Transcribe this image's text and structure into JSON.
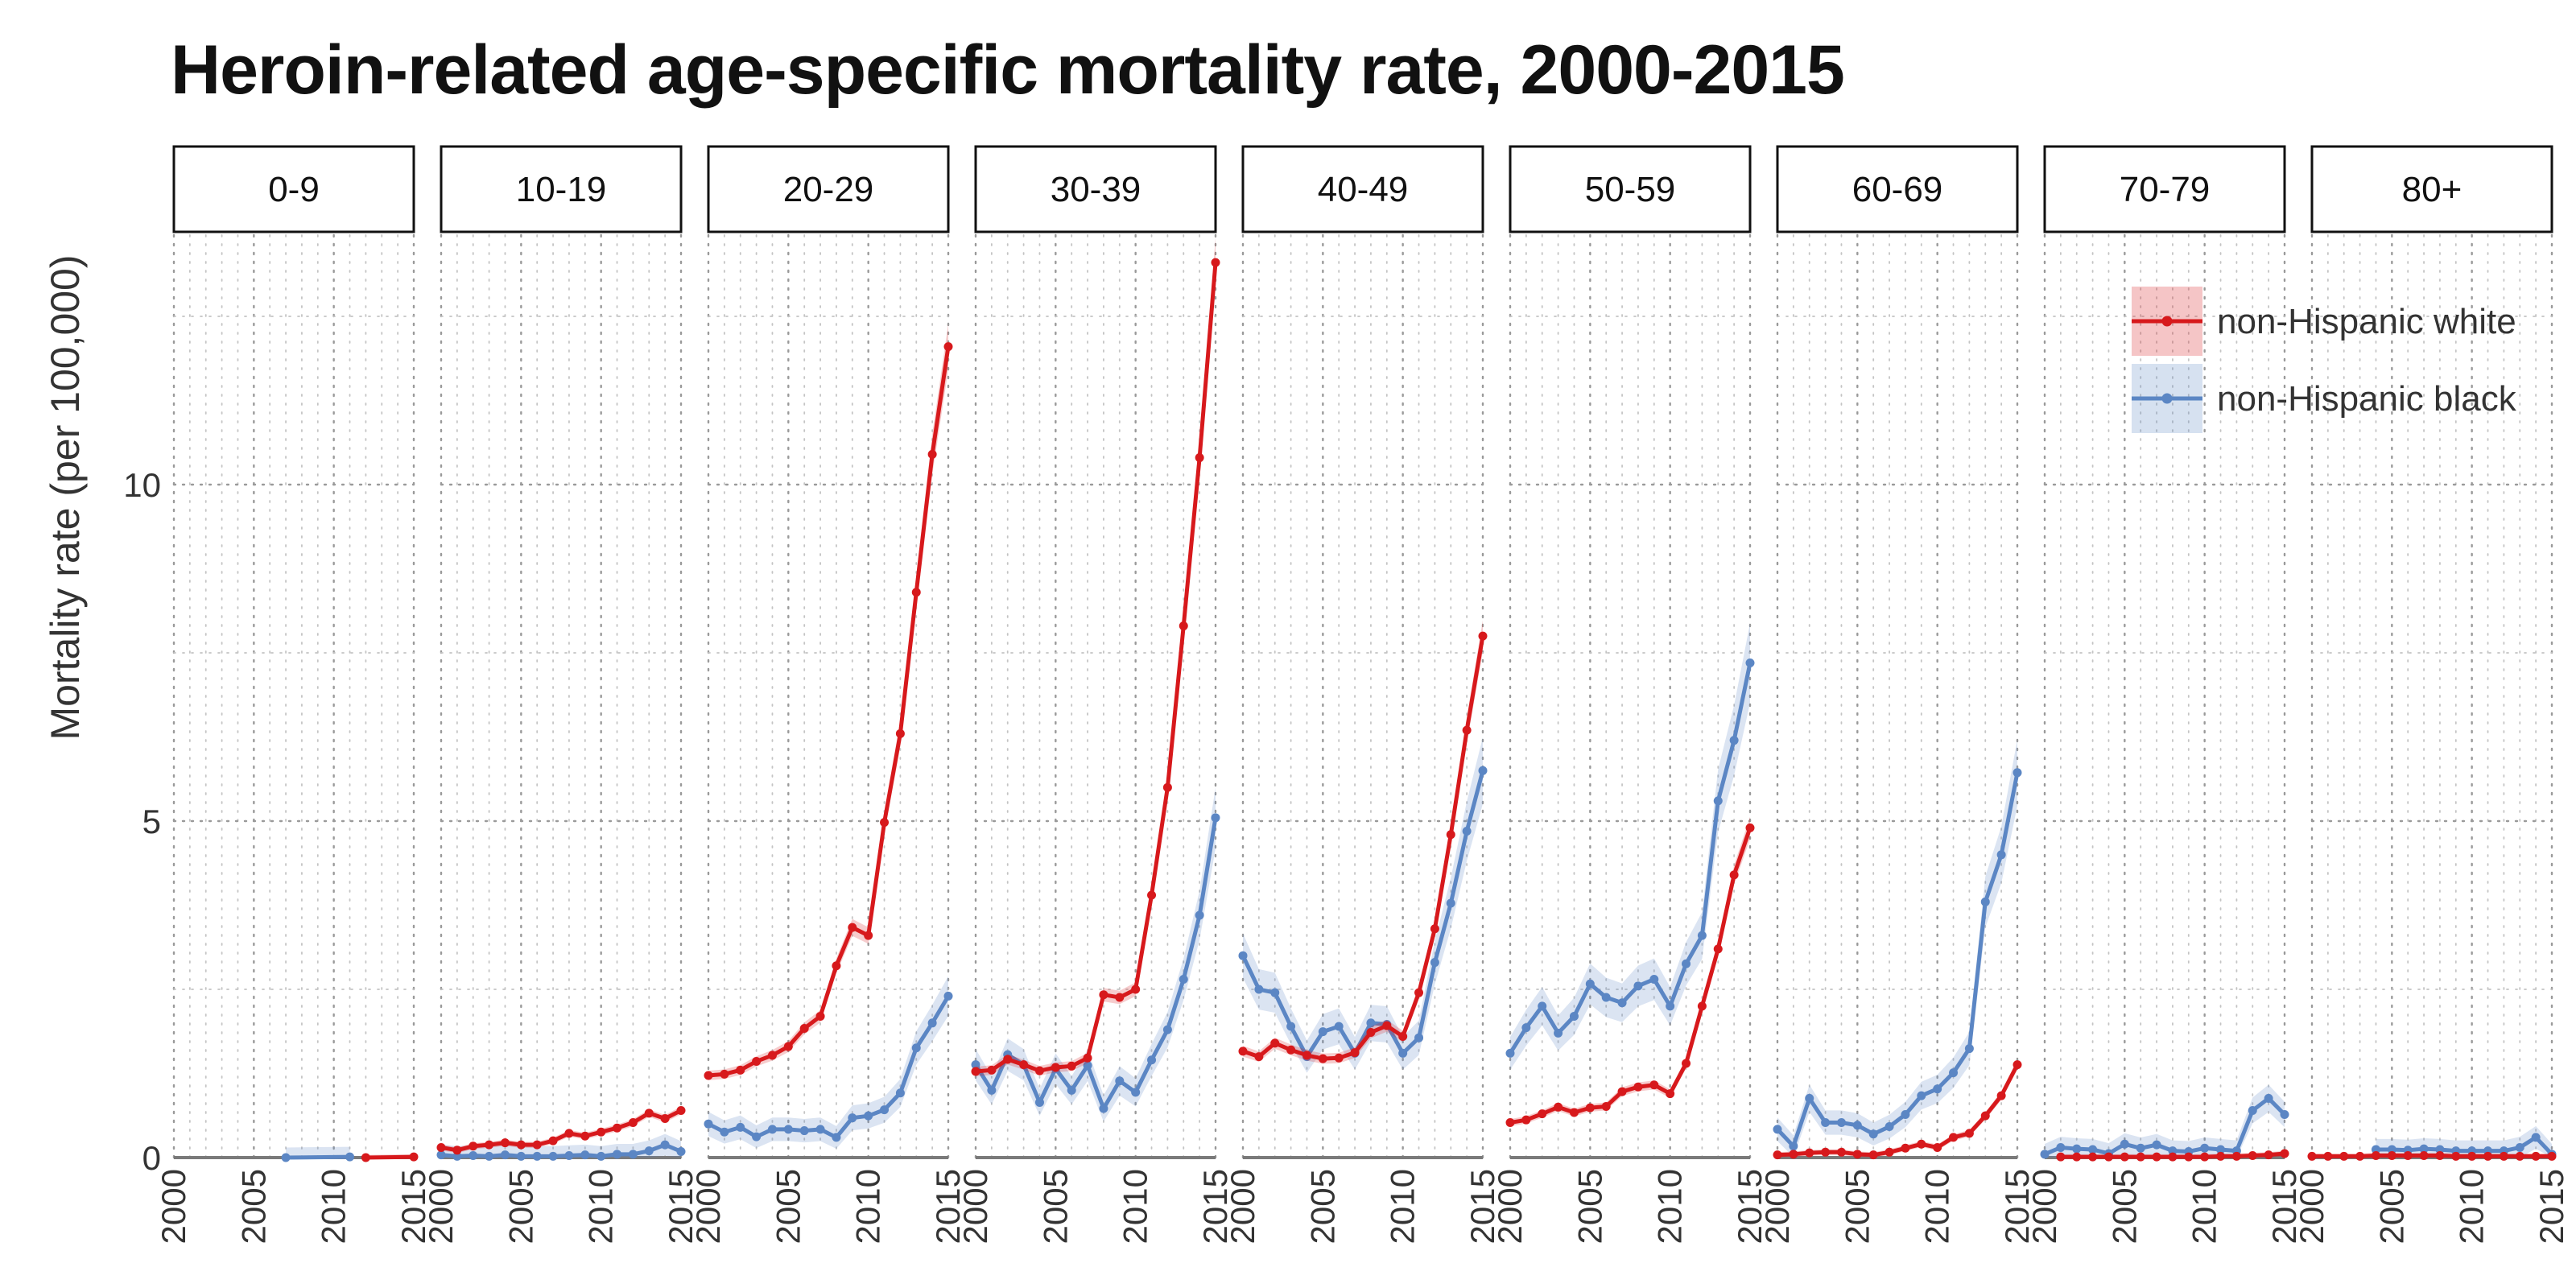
{
  "chart_data": {
    "type": "line",
    "title": "Heroin-related age-specific mortality rate, 2000-2015",
    "ylabel": "Mortality rate (per 100,000)",
    "xlabel": "",
    "xlim": [
      2000,
      2015
    ],
    "ylim": [
      0,
      13.5
    ],
    "x_ticks": [
      2000,
      2005,
      2010,
      2015
    ],
    "y_ticks": [
      0,
      5,
      10
    ],
    "grid": "dotted",
    "legend_position": "top-right",
    "colors": {
      "white": "#d7191c",
      "black": "#5b86c4"
    },
    "legend": [
      {
        "key": "white",
        "label": "non-Hispanic white"
      },
      {
        "key": "black",
        "label": "non-Hispanic black"
      }
    ],
    "facets": [
      {
        "label": "0-9",
        "white": {
          "x": [
            2012,
            2015
          ],
          "y": [
            0.0,
            0.01
          ]
        },
        "black": {
          "x": [
            2007,
            2011
          ],
          "y": [
            0.0,
            0.01
          ]
        }
      },
      {
        "label": "10-19",
        "white": {
          "x": [
            2000,
            2001,
            2002,
            2003,
            2004,
            2005,
            2006,
            2007,
            2008,
            2009,
            2010,
            2011,
            2012,
            2013,
            2014,
            2015
          ],
          "y": [
            0.15,
            0.11,
            0.17,
            0.19,
            0.22,
            0.19,
            0.19,
            0.25,
            0.36,
            0.32,
            0.38,
            0.44,
            0.52,
            0.66,
            0.58,
            0.7
          ]
        },
        "black": {
          "x": [
            2000,
            2001,
            2002,
            2003,
            2004,
            2005,
            2006,
            2007,
            2008,
            2009,
            2010,
            2011,
            2012,
            2013,
            2014,
            2015
          ],
          "y": [
            0.04,
            0.02,
            0.03,
            0.02,
            0.04,
            0.02,
            0.02,
            0.02,
            0.03,
            0.04,
            0.02,
            0.05,
            0.05,
            0.1,
            0.19,
            0.09
          ]
        }
      },
      {
        "label": "20-29",
        "white": {
          "x": [
            2000,
            2001,
            2002,
            2003,
            2004,
            2005,
            2006,
            2007,
            2008,
            2009,
            2010,
            2011,
            2012,
            2013,
            2014,
            2015
          ],
          "y": [
            1.22,
            1.24,
            1.3,
            1.43,
            1.52,
            1.65,
            1.92,
            2.1,
            2.85,
            3.42,
            3.3,
            4.98,
            6.3,
            8.4,
            10.45,
            12.05
          ]
        },
        "black": {
          "x": [
            2000,
            2001,
            2002,
            2003,
            2004,
            2005,
            2006,
            2007,
            2008,
            2009,
            2010,
            2011,
            2012,
            2013,
            2014,
            2015
          ],
          "y": [
            0.5,
            0.38,
            0.45,
            0.31,
            0.42,
            0.42,
            0.4,
            0.42,
            0.3,
            0.59,
            0.62,
            0.71,
            0.96,
            1.63,
            2.0,
            2.4
          ]
        }
      },
      {
        "label": "30-39",
        "white": {
          "x": [
            2000,
            2001,
            2002,
            2003,
            2004,
            2005,
            2006,
            2007,
            2008,
            2009,
            2010,
            2011,
            2012,
            2013,
            2014,
            2015
          ],
          "y": [
            1.28,
            1.3,
            1.46,
            1.38,
            1.29,
            1.34,
            1.36,
            1.48,
            2.42,
            2.38,
            2.5,
            3.9,
            5.5,
            7.9,
            10.4,
            13.3
          ]
        },
        "black": {
          "x": [
            2000,
            2001,
            2002,
            2003,
            2004,
            2005,
            2006,
            2007,
            2008,
            2009,
            2010,
            2011,
            2012,
            2013,
            2014,
            2015
          ],
          "y": [
            1.38,
            1.0,
            1.53,
            1.38,
            0.82,
            1.32,
            1.0,
            1.37,
            0.73,
            1.14,
            0.97,
            1.45,
            1.9,
            2.65,
            3.6,
            5.05
          ]
        }
      },
      {
        "label": "40-49",
        "white": {
          "x": [
            2000,
            2001,
            2002,
            2003,
            2004,
            2005,
            2006,
            2007,
            2008,
            2009,
            2010,
            2011,
            2012,
            2013,
            2014,
            2015
          ],
          "y": [
            1.58,
            1.5,
            1.7,
            1.6,
            1.52,
            1.47,
            1.48,
            1.56,
            1.86,
            1.96,
            1.8,
            2.45,
            3.4,
            4.8,
            6.35,
            7.75
          ]
        },
        "black": {
          "x": [
            2000,
            2001,
            2002,
            2003,
            2004,
            2005,
            2006,
            2007,
            2008,
            2009,
            2010,
            2011,
            2012,
            2013,
            2014,
            2015
          ],
          "y": [
            3.0,
            2.5,
            2.45,
            1.95,
            1.5,
            1.87,
            1.95,
            1.55,
            2.0,
            1.98,
            1.55,
            1.78,
            2.9,
            3.78,
            4.85,
            5.75
          ]
        }
      },
      {
        "label": "50-59",
        "white": {
          "x": [
            2000,
            2001,
            2002,
            2003,
            2004,
            2005,
            2006,
            2007,
            2008,
            2009,
            2010,
            2011,
            2012,
            2013,
            2014,
            2015
          ],
          "y": [
            0.52,
            0.56,
            0.65,
            0.75,
            0.67,
            0.74,
            0.76,
            0.98,
            1.05,
            1.08,
            0.95,
            1.4,
            2.25,
            3.1,
            4.2,
            4.9
          ]
        },
        "black": {
          "x": [
            2000,
            2001,
            2002,
            2003,
            2004,
            2005,
            2006,
            2007,
            2008,
            2009,
            2010,
            2011,
            2012,
            2013,
            2014,
            2015
          ],
          "y": [
            1.55,
            1.93,
            2.25,
            1.85,
            2.1,
            2.58,
            2.38,
            2.3,
            2.55,
            2.65,
            2.25,
            2.88,
            3.3,
            5.3,
            6.2,
            7.35
          ]
        }
      },
      {
        "label": "60-69",
        "white": {
          "x": [
            2000,
            2001,
            2002,
            2003,
            2004,
            2005,
            2006,
            2007,
            2008,
            2009,
            2010,
            2011,
            2012,
            2013,
            2014,
            2015
          ],
          "y": [
            0.04,
            0.05,
            0.07,
            0.08,
            0.08,
            0.05,
            0.04,
            0.08,
            0.14,
            0.2,
            0.15,
            0.3,
            0.36,
            0.62,
            0.92,
            1.38
          ]
        },
        "black": {
          "x": [
            2000,
            2001,
            2002,
            2003,
            2004,
            2005,
            2006,
            2007,
            2008,
            2009,
            2010,
            2011,
            2012,
            2013,
            2014,
            2015
          ],
          "y": [
            0.42,
            0.17,
            0.88,
            0.52,
            0.52,
            0.48,
            0.35,
            0.46,
            0.64,
            0.92,
            1.02,
            1.26,
            1.62,
            3.8,
            4.5,
            5.72
          ]
        }
      },
      {
        "label": "70-79",
        "white": {
          "x": [
            2001,
            2002,
            2003,
            2004,
            2005,
            2006,
            2007,
            2008,
            2009,
            2010,
            2011,
            2012,
            2013,
            2014,
            2015
          ],
          "y": [
            0.01,
            0.01,
            0.01,
            0.01,
            0.01,
            0.01,
            0.01,
            0.01,
            0.01,
            0.01,
            0.02,
            0.02,
            0.03,
            0.04,
            0.06
          ]
        },
        "black": {
          "x": [
            2000,
            2001,
            2002,
            2003,
            2004,
            2005,
            2006,
            2007,
            2008,
            2009,
            2010,
            2011,
            2012,
            2013,
            2014,
            2015
          ],
          "y": [
            0.05,
            0.15,
            0.13,
            0.12,
            0.06,
            0.2,
            0.14,
            0.19,
            0.1,
            0.09,
            0.14,
            0.12,
            0.1,
            0.7,
            0.88,
            0.64
          ]
        }
      },
      {
        "label": "80+",
        "white": {
          "x": [
            2000,
            2001,
            2002,
            2003,
            2004,
            2005,
            2006,
            2007,
            2008,
            2009,
            2010,
            2011,
            2012,
            2013,
            2014,
            2015
          ],
          "y": [
            0.02,
            0.02,
            0.02,
            0.02,
            0.03,
            0.03,
            0.03,
            0.03,
            0.03,
            0.02,
            0.02,
            0.02,
            0.02,
            0.02,
            0.02,
            0.02
          ]
        },
        "black": {
          "x": [
            2004,
            2005,
            2006,
            2007,
            2008,
            2009,
            2010,
            2011,
            2012,
            2013,
            2014,
            2015
          ],
          "y": [
            0.12,
            0.12,
            0.11,
            0.13,
            0.12,
            0.1,
            0.1,
            0.1,
            0.1,
            0.15,
            0.3,
            0.05
          ]
        }
      }
    ]
  }
}
